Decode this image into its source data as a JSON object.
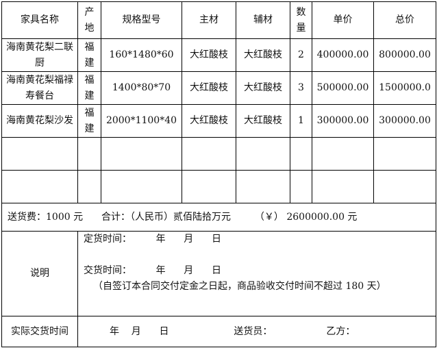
{
  "headers": [
    "家具名称",
    "产地",
    "规格型号",
    "主材",
    "辅材",
    "数量",
    "单价",
    "总价"
  ],
  "rows": [
    [
      "海南黄花梨二联厨",
      "福建",
      "160*1480*60",
      "大红酸枝",
      "大红酸枝",
      "2",
      "400000.00",
      "800000.00"
    ],
    [
      "海南黄花梨福禄寿餐台",
      "福建",
      "1400*80*70",
      "大红酸枝",
      "大红酸枝",
      "3",
      "500000.00",
      "1500000.0"
    ],
    [
      "海南黄花梨沙发",
      "福建",
      "2000*1100*40",
      "大红酸枝",
      "大红酸枝",
      "1",
      "300000.00",
      "300000.00"
    ]
  ],
  "fee": {
    "delivery": "送货费：1000 元",
    "total_label": "合计：（人民币）贰佰陆拾万元",
    "total_amount": "（￥） 2600000.00 元"
  },
  "note": {
    "label": "说明",
    "order_time": "定货时间：        年      月      日",
    "delivery_time": "交货时间：        年      月      日",
    "terms": "（自签订本合同交付定金之日起，商品验收交付时间不超过 180 天）"
  },
  "actual": {
    "label": "实际交货时间",
    "date": "年    月      日",
    "deliverer": "送货员：",
    "party_b": "乙方："
  }
}
